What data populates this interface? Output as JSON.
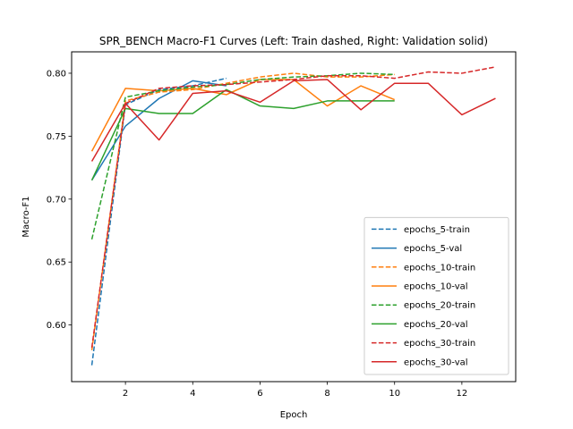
{
  "chart_data": {
    "type": "line",
    "title": "SPR_BENCH Macro-F1 Curves (Left: Train dashed, Right: Validation solid)",
    "xlabel": "Epoch",
    "ylabel": "Macro-F1",
    "xlim": [
      0.4,
      13.6
    ],
    "ylim": [
      0.555,
      0.817
    ],
    "xticks": [
      2,
      4,
      6,
      8,
      10,
      12
    ],
    "yticks": [
      0.6,
      0.65,
      0.7,
      0.75,
      0.8
    ],
    "xtick_labels": [
      "2",
      "4",
      "6",
      "8",
      "10",
      "12"
    ],
    "ytick_labels": [
      "0.60",
      "0.65",
      "0.70",
      "0.75",
      "0.80"
    ],
    "grid": false,
    "legend_position": "lower-right",
    "series": [
      {
        "name": "epochs_5-train",
        "color": "#1f77b4",
        "style": "dashed",
        "x": [
          1,
          2,
          3,
          4,
          5
        ],
        "y": [
          0.568,
          0.775,
          0.787,
          0.79,
          0.796
        ]
      },
      {
        "name": "epochs_5-val",
        "color": "#1f77b4",
        "style": "solid",
        "x": [
          1,
          2,
          3,
          4,
          5
        ],
        "y": [
          0.715,
          0.758,
          0.78,
          0.794,
          0.79
        ]
      },
      {
        "name": "epochs_10-train",
        "color": "#ff7f0e",
        "style": "dashed",
        "x": [
          1,
          2,
          3,
          4,
          5,
          6,
          7,
          8,
          9,
          10
        ],
        "y": [
          0.58,
          0.778,
          0.785,
          0.787,
          0.792,
          0.797,
          0.8,
          0.797,
          0.797,
          0.799
        ]
      },
      {
        "name": "epochs_10-val",
        "color": "#ff7f0e",
        "style": "solid",
        "x": [
          1,
          2,
          3,
          4,
          5,
          6,
          7,
          8,
          9,
          10
        ],
        "y": [
          0.738,
          0.788,
          0.786,
          0.788,
          0.783,
          0.795,
          0.795,
          0.774,
          0.79,
          0.779
        ]
      },
      {
        "name": "epochs_20-train",
        "color": "#2ca02c",
        "style": "dashed",
        "x": [
          1,
          2,
          3,
          4,
          5,
          6,
          7,
          8,
          9,
          10
        ],
        "y": [
          0.668,
          0.781,
          0.786,
          0.789,
          0.791,
          0.795,
          0.797,
          0.798,
          0.8,
          0.799
        ]
      },
      {
        "name": "epochs_20-val",
        "color": "#2ca02c",
        "style": "solid",
        "x": [
          1,
          2,
          3,
          4,
          5,
          6,
          7,
          8,
          9,
          10
        ],
        "y": [
          0.715,
          0.772,
          0.768,
          0.768,
          0.787,
          0.774,
          0.772,
          0.778,
          0.778,
          0.778
        ]
      },
      {
        "name": "epochs_30-train",
        "color": "#d62728",
        "style": "dashed",
        "x": [
          1,
          2,
          3,
          4,
          5,
          6,
          7,
          8,
          9,
          10,
          11,
          12,
          13
        ],
        "y": [
          0.582,
          0.776,
          0.788,
          0.79,
          0.791,
          0.793,
          0.795,
          0.798,
          0.798,
          0.796,
          0.801,
          0.8,
          0.805
        ]
      },
      {
        "name": "epochs_30-val",
        "color": "#d62728",
        "style": "solid",
        "x": [
          1,
          2,
          3,
          4,
          5,
          6,
          7,
          8,
          9,
          10,
          11,
          12,
          13
        ],
        "y": [
          0.73,
          0.776,
          0.747,
          0.784,
          0.786,
          0.777,
          0.794,
          0.795,
          0.771,
          0.792,
          0.792,
          0.767,
          0.78
        ]
      }
    ]
  }
}
